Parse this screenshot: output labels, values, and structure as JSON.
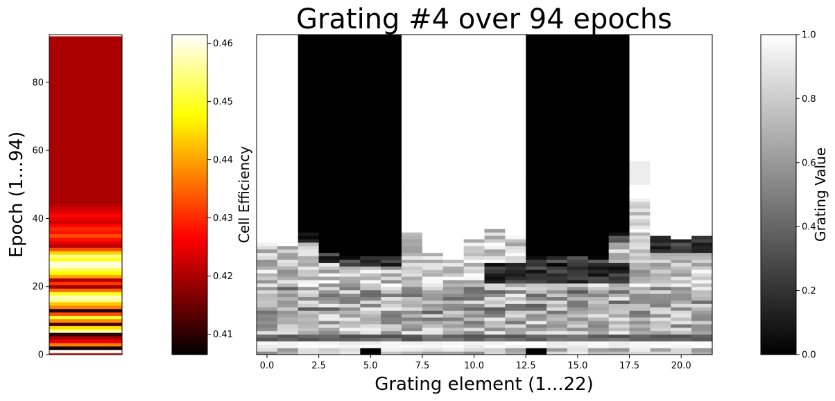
{
  "chart_data": {
    "type": "heatmap",
    "title": "Grating #4 over 94 epochs",
    "efficiency_strip": {
      "ylabel": "Epoch (1...94)",
      "yticks": [
        0,
        20,
        40,
        60,
        80
      ],
      "ylim": [
        0,
        94
      ],
      "epoch_efficiency": [
        0.425,
        0.461,
        0.408,
        0.437,
        0.425,
        0.42,
        0.41,
        0.456,
        0.445,
        0.412,
        0.438,
        0.45,
        0.433,
        0.409,
        0.437,
        0.443,
        0.455,
        0.458,
        0.449,
        0.435,
        0.419,
        0.431,
        0.421,
        0.44,
        0.447,
        0.452,
        0.459,
        0.46,
        0.449,
        0.455,
        0.444,
        0.433,
        0.421,
        0.425,
        0.428,
        0.433,
        0.428,
        0.43,
        0.427,
        0.423,
        0.425,
        0.427,
        0.424,
        0.423,
        0.421,
        0.42,
        0.42,
        0.42,
        0.42,
        0.42,
        0.42,
        0.42,
        0.42,
        0.42,
        0.42,
        0.42,
        0.42,
        0.42,
        0.42,
        0.42,
        0.42,
        0.42,
        0.42,
        0.42,
        0.42,
        0.42,
        0.42,
        0.42,
        0.42,
        0.42,
        0.42,
        0.42,
        0.42,
        0.42,
        0.42,
        0.42,
        0.42,
        0.42,
        0.42,
        0.42,
        0.42,
        0.42,
        0.42,
        0.42,
        0.42,
        0.42,
        0.42,
        0.42,
        0.42,
        0.42,
        0.42,
        0.42,
        0.42,
        0.42
      ]
    },
    "efficiency_colorbar": {
      "label": "Cell Efficiency",
      "range": [
        0.4065,
        0.4615
      ],
      "ticks": [
        0.41,
        0.42,
        0.43,
        0.44,
        0.45,
        0.46
      ],
      "tick_labels": [
        "0.41",
        "0.42",
        "0.43",
        "0.44",
        "0.45",
        "0.46"
      ]
    },
    "grating_map": {
      "xlabel": "Grating element (1...22)",
      "xticks": [
        0.0,
        2.5,
        5.0,
        7.5,
        10.0,
        12.5,
        15.0,
        17.5,
        20.0
      ],
      "xtick_labels": [
        "0.0",
        "2.5",
        "5.0",
        "7.5",
        "10.0",
        "12.5",
        "15.0",
        "17.5",
        "20.0"
      ],
      "xlim": [
        -0.5,
        21.5
      ],
      "elements": 22,
      "epochs": 94,
      "epochs_pattern_note": "",
      "final_pattern": [
        1,
        1,
        0,
        0,
        0,
        0,
        0,
        1,
        1,
        1,
        1,
        1,
        1,
        0,
        0,
        0,
        0,
        0,
        1,
        1,
        1,
        1
      ]
    },
    "grating_colorbar": {
      "label": "Grating Value",
      "range": [
        0,
        1
      ],
      "ticks": [
        0.0,
        0.2,
        0.4,
        0.6,
        0.8,
        1.0
      ],
      "tick_labels": [
        "0.0",
        "0.2",
        "0.4",
        "0.6",
        "0.8",
        "1.0"
      ]
    }
  }
}
